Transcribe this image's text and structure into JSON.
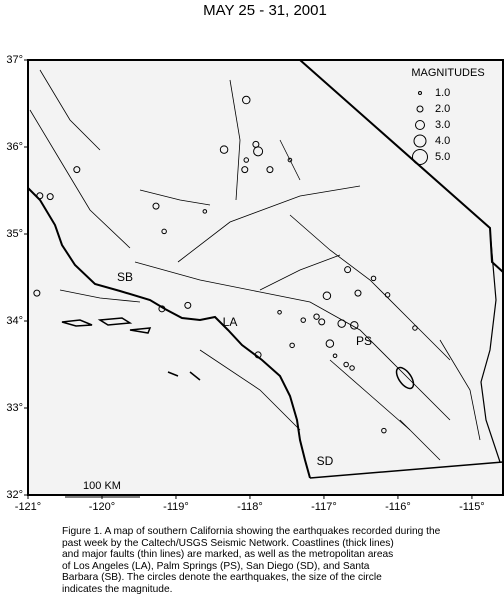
{
  "title": "MAY 25 - 31, 2001",
  "map": {
    "xlim": [
      -121,
      -114.58
    ],
    "ylim": [
      32,
      37
    ],
    "xticks": [
      {
        "value": -121,
        "label": "-121°"
      },
      {
        "value": -120,
        "label": "-120°"
      },
      {
        "value": -119,
        "label": "-119°"
      },
      {
        "value": -118,
        "label": "-118°"
      },
      {
        "value": -117,
        "label": "-117°"
      },
      {
        "value": -116,
        "label": "-116°"
      },
      {
        "value": -115,
        "label": "-115°"
      }
    ],
    "yticks": [
      {
        "value": 32,
        "label": "32°"
      },
      {
        "value": 33,
        "label": "33°"
      },
      {
        "value": 34,
        "label": "34°"
      },
      {
        "value": 35,
        "label": "35°"
      },
      {
        "value": 36,
        "label": "36°"
      },
      {
        "value": 37,
        "label": "37°"
      }
    ],
    "legend": {
      "title": "MAGNITUDES",
      "magnitudes": [
        {
          "value": 1,
          "label": "1.0"
        },
        {
          "value": 2,
          "label": "2.0"
        },
        {
          "value": 3,
          "label": "3.0"
        },
        {
          "value": 4,
          "label": "4.0"
        },
        {
          "value": 5,
          "label": "5.0"
        }
      ]
    },
    "places": [
      "SB",
      "LA",
      "PS",
      "SD"
    ],
    "scale_label": "100 KM",
    "quakes": [
      {
        "lon": -118.05,
        "lat": 36.54,
        "mag": 2.5
      },
      {
        "lon": -118.35,
        "lat": 35.97,
        "mag": 2.5
      },
      {
        "lon": -117.92,
        "lat": 36.03,
        "mag": 2
      },
      {
        "lon": -117.89,
        "lat": 35.95,
        "mag": 3
      },
      {
        "lon": -118.05,
        "lat": 35.85,
        "mag": 1.5
      },
      {
        "lon": -118.07,
        "lat": 35.74,
        "mag": 2
      },
      {
        "lon": -117.73,
        "lat": 35.74,
        "mag": 2
      },
      {
        "lon": -117.46,
        "lat": 35.85,
        "mag": 1.2
      },
      {
        "lon": -120.34,
        "lat": 35.74,
        "mag": 2
      },
      {
        "lon": -120.84,
        "lat": 35.44,
        "mag": 2
      },
      {
        "lon": -120.7,
        "lat": 35.43,
        "mag": 2
      },
      {
        "lon": -119.27,
        "lat": 35.32,
        "mag": 2
      },
      {
        "lon": -119.16,
        "lat": 35.03,
        "mag": 1.5
      },
      {
        "lon": -118.61,
        "lat": 35.26,
        "mag": 1.2
      },
      {
        "lon": -116.68,
        "lat": 34.59,
        "mag": 2
      },
      {
        "lon": -116.33,
        "lat": 34.49,
        "mag": 1.5
      },
      {
        "lon": -116.14,
        "lat": 34.3,
        "mag": 1.5
      },
      {
        "lon": -116.54,
        "lat": 34.32,
        "mag": 2
      },
      {
        "lon": -116.96,
        "lat": 34.29,
        "mag": 2.5
      },
      {
        "lon": -120.88,
        "lat": 34.32,
        "mag": 2
      },
      {
        "lon": -119.19,
        "lat": 34.14,
        "mag": 2
      },
      {
        "lon": -118.84,
        "lat": 34.18,
        "mag": 2
      },
      {
        "lon": -117.28,
        "lat": 34.01,
        "mag": 1.5
      },
      {
        "lon": -117.03,
        "lat": 33.99,
        "mag": 2
      },
      {
        "lon": -116.76,
        "lat": 33.97,
        "mag": 2.5
      },
      {
        "lon": -116.59,
        "lat": 33.95,
        "mag": 2.5
      },
      {
        "lon": -115.77,
        "lat": 33.92,
        "mag": 1.5
      },
      {
        "lon": -117.89,
        "lat": 33.61,
        "mag": 2
      },
      {
        "lon": -117.43,
        "lat": 33.72,
        "mag": 1.5
      },
      {
        "lon": -116.62,
        "lat": 33.46,
        "mag": 1.5
      },
      {
        "lon": -116.19,
        "lat": 32.74,
        "mag": 1.5
      },
      {
        "lon": -116.92,
        "lat": 33.74,
        "mag": 2.5
      },
      {
        "lon": -117.1,
        "lat": 34.05,
        "mag": 1.8
      },
      {
        "lon": -116.85,
        "lat": 33.6,
        "mag": 1.2
      },
      {
        "lon": -116.7,
        "lat": 33.5,
        "mag": 1.5
      },
      {
        "lon": -117.6,
        "lat": 34.1,
        "mag": 1.2
      }
    ]
  },
  "caption": [
    "Figure 1. A map of southern California showing the earthquakes recorded during the",
    "past week by the Caltech/USGS Seismic Network.  Coastlines (thick lines)",
    "and major faults (thin lines) are marked, as well as the metropolitan areas",
    "of Los Angeles (LA), Palm Springs (PS), San Diego (SD), and Santa",
    "Barbara (SB).  The circles denote the earthquakes, the size of the circle",
    "indicates the magnitude."
  ]
}
